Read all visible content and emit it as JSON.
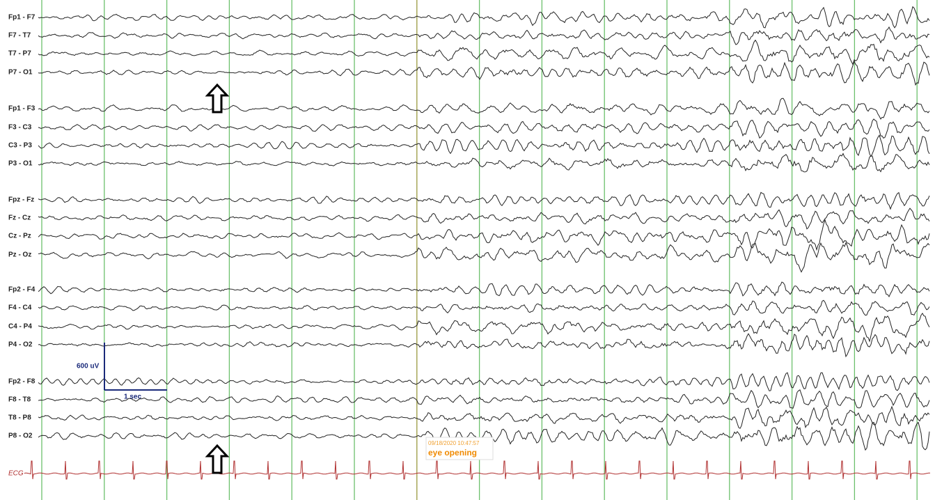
{
  "channels": [
    "Fp1 - F7",
    "F7 - T7",
    "T7 - P7",
    "P7 - O1",
    "Fp1 - F3",
    "F3 - C3",
    "C3 - P3",
    "P3 - O1",
    "Fpz - Fz",
    "Fz - Cz",
    "Cz - Pz",
    "Pz - Oz",
    "Fp2 - F4",
    "F4 - C4",
    "C4 - P4",
    "P4 - O2",
    "Fp2 - F8",
    "F8 - T8",
    "T8 - P8",
    "P8 - O2"
  ],
  "scale": {
    "amplitude": "600 uV",
    "time": "1 sec"
  },
  "annotation": {
    "timestamp": "09/18/2020 10:47:57",
    "label": "eye opening"
  },
  "ecg_label": "ECG"
}
